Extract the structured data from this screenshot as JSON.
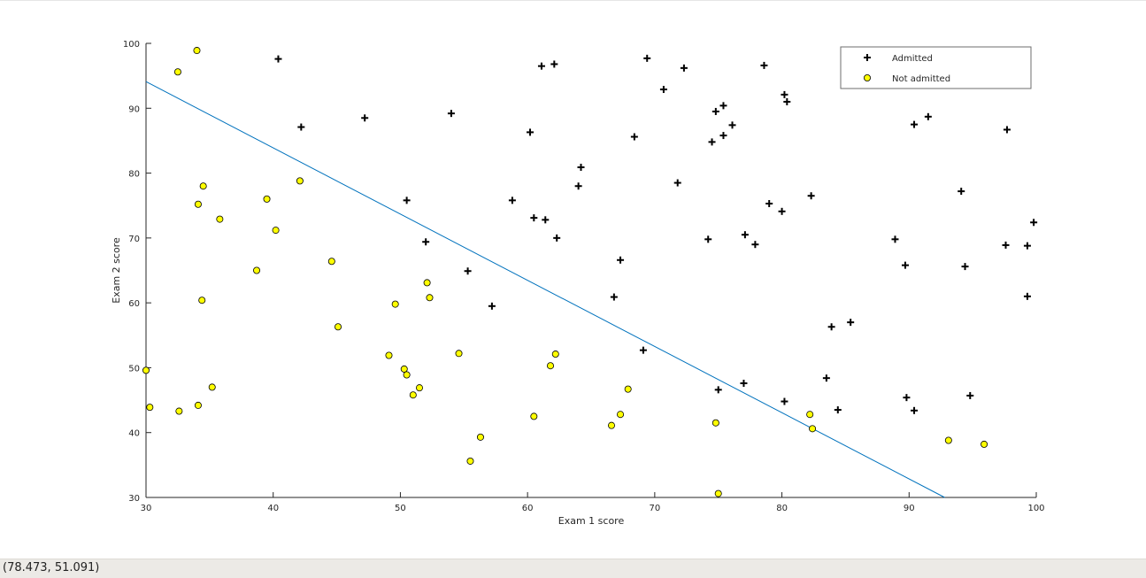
{
  "status_bar": {
    "coordinates": "(78.473, 51.091)"
  },
  "colors": {
    "admitted_marker": "#000000",
    "not_admitted_fill": "#ffff00",
    "not_admitted_edge": "#000000",
    "decision_boundary": "#0072bd",
    "axes": "#262626"
  },
  "chart_data": {
    "type": "scatter",
    "title": "",
    "xlabel": "Exam 1 score",
    "ylabel": "Exam 2 score",
    "xlim": [
      30,
      100
    ],
    "ylim": [
      30,
      100
    ],
    "xticks": [
      30,
      40,
      50,
      60,
      70,
      80,
      90,
      100
    ],
    "yticks": [
      30,
      40,
      50,
      60,
      70,
      80,
      90,
      100
    ],
    "grid": false,
    "box": false,
    "legend": {
      "position": "top-right",
      "entries": [
        "Admitted",
        "Not admitted"
      ]
    },
    "series": [
      {
        "name": "Admitted",
        "marker": "+",
        "points": [
          [
            40.4,
            97.6
          ],
          [
            42.2,
            87.1
          ],
          [
            47.2,
            88.5
          ],
          [
            54.0,
            89.2
          ],
          [
            60.2,
            86.3
          ],
          [
            61.1,
            96.5
          ],
          [
            62.1,
            96.8
          ],
          [
            69.4,
            97.7
          ],
          [
            70.7,
            92.9
          ],
          [
            72.3,
            96.2
          ],
          [
            78.6,
            96.6
          ],
          [
            80.2,
            92.1
          ],
          [
            80.4,
            91.0
          ],
          [
            68.4,
            85.6
          ],
          [
            74.5,
            84.8
          ],
          [
            74.8,
            89.5
          ],
          [
            75.4,
            90.4
          ],
          [
            75.4,
            85.8
          ],
          [
            76.1,
            87.4
          ],
          [
            64.2,
            80.9
          ],
          [
            64.0,
            78.0
          ],
          [
            71.8,
            78.5
          ],
          [
            50.5,
            75.8
          ],
          [
            58.8,
            75.8
          ],
          [
            60.5,
            73.1
          ],
          [
            61.4,
            72.8
          ],
          [
            62.3,
            70.0
          ],
          [
            52.0,
            69.4
          ],
          [
            55.3,
            64.9
          ],
          [
            57.2,
            59.5
          ],
          [
            66.8,
            60.9
          ],
          [
            67.3,
            66.6
          ],
          [
            74.2,
            69.8
          ],
          [
            77.1,
            70.5
          ],
          [
            77.9,
            69.0
          ],
          [
            79.0,
            75.3
          ],
          [
            80.0,
            74.1
          ],
          [
            82.3,
            76.5
          ],
          [
            69.1,
            52.7
          ],
          [
            75.0,
            46.6
          ],
          [
            77.0,
            47.6
          ],
          [
            80.2,
            44.8
          ],
          [
            83.5,
            48.4
          ],
          [
            84.4,
            43.5
          ],
          [
            83.9,
            56.3
          ],
          [
            85.4,
            57.0
          ],
          [
            88.9,
            69.8
          ],
          [
            89.7,
            65.8
          ],
          [
            89.8,
            45.4
          ],
          [
            90.4,
            43.4
          ],
          [
            94.1,
            77.2
          ],
          [
            94.4,
            65.6
          ],
          [
            94.8,
            45.7
          ],
          [
            90.4,
            87.5
          ],
          [
            91.5,
            88.7
          ],
          [
            97.7,
            86.7
          ],
          [
            97.6,
            68.9
          ],
          [
            99.3,
            68.8
          ],
          [
            99.8,
            72.4
          ],
          [
            99.3,
            61.0
          ]
        ]
      },
      {
        "name": "Not admitted",
        "marker": "o",
        "points": [
          [
            34.0,
            98.9
          ],
          [
            32.5,
            95.6
          ],
          [
            42.1,
            78.8
          ],
          [
            34.5,
            78.0
          ],
          [
            34.1,
            75.2
          ],
          [
            35.8,
            72.9
          ],
          [
            39.5,
            76.0
          ],
          [
            40.2,
            71.2
          ],
          [
            38.7,
            65.0
          ],
          [
            44.6,
            66.4
          ],
          [
            34.4,
            60.4
          ],
          [
            45.1,
            56.3
          ],
          [
            30.0,
            49.6
          ],
          [
            30.3,
            43.9
          ],
          [
            32.6,
            43.3
          ],
          [
            34.1,
            44.2
          ],
          [
            35.2,
            47.0
          ],
          [
            49.1,
            51.9
          ],
          [
            49.6,
            59.8
          ],
          [
            50.3,
            49.8
          ],
          [
            50.5,
            48.9
          ],
          [
            51.0,
            45.8
          ],
          [
            51.5,
            46.9
          ],
          [
            52.1,
            63.1
          ],
          [
            52.3,
            60.8
          ],
          [
            54.6,
            52.2
          ],
          [
            56.3,
            39.3
          ],
          [
            55.5,
            35.6
          ],
          [
            60.5,
            42.5
          ],
          [
            61.8,
            50.3
          ],
          [
            62.2,
            52.1
          ],
          [
            66.6,
            41.1
          ],
          [
            67.3,
            42.8
          ],
          [
            67.9,
            46.7
          ],
          [
            74.8,
            41.5
          ],
          [
            75.0,
            30.6
          ],
          [
            82.2,
            42.8
          ],
          [
            82.4,
            40.6
          ],
          [
            93.1,
            38.8
          ],
          [
            95.9,
            38.2
          ]
        ]
      },
      {
        "name": "",
        "marker": "line",
        "points": [
          [
            30.0,
            94.1
          ],
          [
            92.8,
            30.0
          ]
        ]
      }
    ]
  }
}
